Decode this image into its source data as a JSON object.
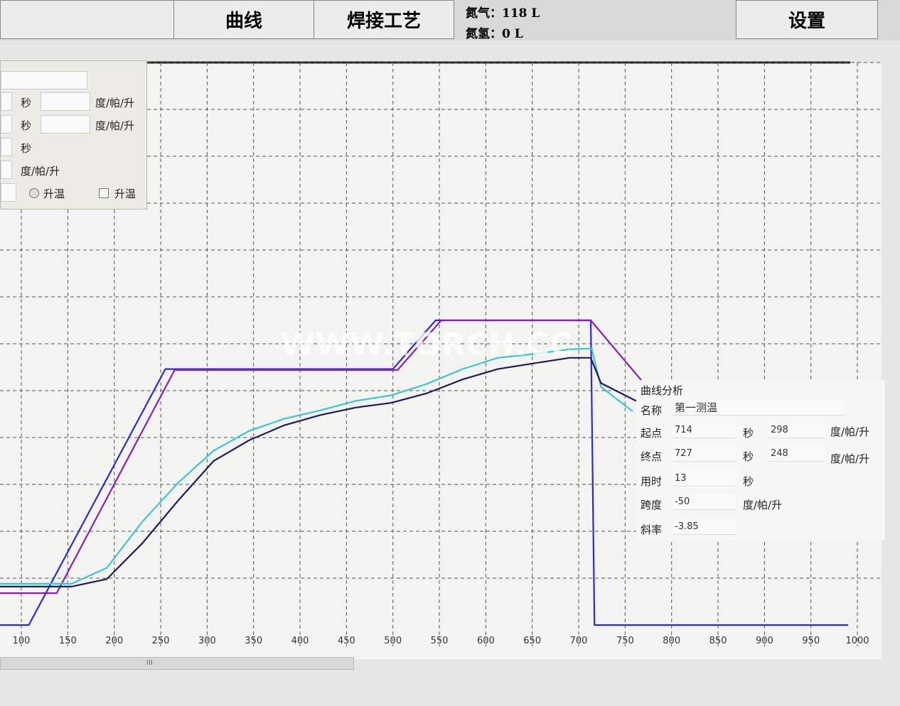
{
  "toolbar": {
    "buttons": [
      "曲线",
      "焊接工艺",
      "设置"
    ],
    "gas": [
      "氮气：118 L",
      "氮氢：0 L"
    ]
  },
  "left_panel": {
    "units": [
      "秒",
      "度/帕/升",
      "秒",
      "度/帕/升",
      "秒",
      "度/帕/升"
    ],
    "radio": "升温",
    "checkbox": "升温"
  },
  "watermark": "WWW.TORCH.CC",
  "chart_data": {
    "type": "line",
    "xlim": [
      77,
      1026
    ],
    "ylim": [
      0,
      600
    ],
    "xticks": [
      100,
      150,
      200,
      250,
      300,
      350,
      400,
      450,
      500,
      550,
      600,
      650,
      700,
      750,
      800,
      850,
      900,
      950,
      1000
    ],
    "grid": true,
    "series": [
      {
        "color": "#2b2bd6",
        "x": [
          77,
          108,
          255,
          500,
          546,
          713,
          717,
          990
        ],
        "values": [
          0,
          0,
          273,
          273,
          325,
          325,
          0,
          0
        ]
      },
      {
        "color": "#8a1fb8",
        "x": [
          77,
          138,
          265,
          505,
          552,
          713,
          770
        ],
        "values": [
          34,
          34,
          272,
          272,
          325,
          325,
          258
        ]
      },
      {
        "color": "#3cc6cf",
        "x": [
          77,
          154,
          192,
          230,
          269,
          307,
          345,
          383,
          422,
          460,
          498,
          536,
          575,
          613,
          651,
          690,
          714,
          724,
          758
        ],
        "values": [
          44,
          44,
          61,
          110,
          152,
          186,
          207,
          220,
          229,
          239,
          245,
          257,
          273,
          285,
          289,
          294,
          295,
          254,
          228
        ]
      },
      {
        "color": "#1c1c5e",
        "x": [
          77,
          154,
          192,
          230,
          269,
          307,
          345,
          383,
          422,
          460,
          498,
          536,
          575,
          613,
          651,
          690,
          713,
          724,
          762
        ],
        "values": [
          41,
          41,
          49,
          87,
          133,
          175,
          197,
          213,
          224,
          232,
          237,
          247,
          262,
          273,
          279,
          285,
          285,
          258,
          239
        ]
      }
    ]
  },
  "analysis": {
    "title": "曲线分析",
    "name_label": "名称",
    "name": "第一测温",
    "start_label": "起点",
    "start_time": 714,
    "start_value": 298,
    "end_label": "终点",
    "end_time": 727,
    "end_value": 248,
    "duration_label": "用时",
    "duration": 13,
    "span_label": "跨度",
    "span": -50,
    "slope_label": "斜率",
    "slope": -3.85,
    "unit_time": "秒",
    "unit_value": "度/帕/升"
  }
}
